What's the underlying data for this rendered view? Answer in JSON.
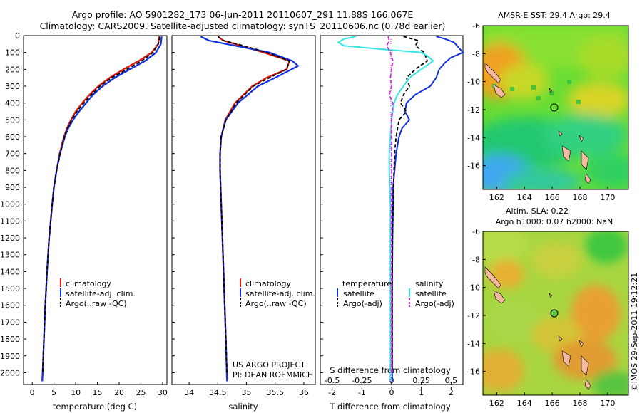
{
  "header": {
    "line1": "Argo profile: AO 5901282_173 06-Jun-2011 20110607_291 11.88S 166.067E",
    "line2": "Climatology: CARS2009. Satellite-adjusted climatology: synTS_20110606.nc (0.78d earlier)"
  },
  "side_label": "©IMOS 29-Sep-2011 19:12:21",
  "colors": {
    "climatology": "#e0140a",
    "satellite": "#1030e0",
    "argo": "#000000",
    "cyan": "#33e6e6",
    "magenta": "#e020e0"
  },
  "chart_data": [
    {
      "type": "line",
      "xlabel": "temperature (deg C)",
      "ylabel": "",
      "xlim": [
        -2,
        31
      ],
      "ylim": [
        2070,
        0
      ],
      "xticks": [
        "0",
        "5",
        "10",
        "15",
        "20",
        "25",
        "30"
      ],
      "yticks": [
        "0",
        "100",
        "200",
        "300",
        "400",
        "500",
        "600",
        "700",
        "800",
        "900",
        "1000",
        "1100",
        "1200",
        "1300",
        "1400",
        "1500",
        "1600",
        "1700",
        "1800",
        "1900",
        "2000"
      ],
      "legend": [
        "climatology",
        "satellite-adj. clim.",
        "Argo(..raw -QC)"
      ],
      "series": [
        {
          "name": "climatology",
          "depth": [
            5,
            50,
            100,
            150,
            200,
            250,
            300,
            350,
            400,
            450,
            500,
            550,
            600,
            700,
            800,
            900,
            1000,
            1200,
            1400,
            1600,
            1800,
            2000,
            2050
          ],
          "values": [
            29.2,
            29.0,
            27.5,
            24.5,
            21.0,
            17.8,
            15.2,
            13.2,
            11.5,
            10.0,
            8.9,
            8.0,
            7.3,
            6.3,
            5.6,
            5.0,
            4.6,
            3.9,
            3.4,
            3.0,
            2.7,
            2.4,
            2.3
          ]
        },
        {
          "name": "satellite-adj. clim.",
          "depth": [
            5,
            50,
            100,
            150,
            200,
            250,
            300,
            350,
            400,
            450,
            500,
            550,
            600,
            700,
            800,
            900,
            1000,
            1200,
            1400,
            1600,
            1800,
            2000,
            2050
          ],
          "values": [
            29.8,
            29.6,
            28.5,
            26.0,
            22.5,
            19.0,
            16.2,
            14.0,
            12.4,
            10.8,
            9.4,
            8.3,
            7.5,
            6.4,
            5.6,
            5.0,
            4.6,
            3.9,
            3.4,
            3.0,
            2.7,
            2.4,
            2.3
          ]
        },
        {
          "name": "Argo(..raw -QC)",
          "depth": [
            5,
            50,
            100,
            150,
            200,
            250,
            300,
            350,
            400,
            450,
            500,
            550,
            600,
            700,
            800,
            900,
            1000,
            1200,
            1400,
            1600,
            1800,
            2000
          ],
          "values": [
            29.4,
            29.0,
            27.8,
            25.2,
            21.8,
            18.3,
            15.6,
            13.6,
            11.9,
            10.3,
            9.1,
            8.1,
            7.4,
            6.4,
            5.6,
            5.0,
            4.6,
            3.9,
            3.4,
            3.0,
            2.7,
            2.4
          ]
        }
      ]
    },
    {
      "type": "line",
      "xlabel": "salinity",
      "ylabel": "",
      "xlim": [
        33.7,
        36.2
      ],
      "ylim": [
        2070,
        0
      ],
      "xticks": [
        "34",
        "34.5",
        "35",
        "35.5",
        "36"
      ],
      "legend": [
        "climatology",
        "satellite-adj. clim.",
        "Argo(..raw -QC)"
      ],
      "series": [
        {
          "name": "climatology",
          "depth": [
            5,
            30,
            60,
            100,
            150,
            200,
            250,
            300,
            400,
            500,
            600,
            700,
            800,
            1000,
            1200,
            1500,
            1800,
            2050
          ],
          "values": [
            34.5,
            34.6,
            34.9,
            35.3,
            35.75,
            35.7,
            35.35,
            35.1,
            34.8,
            34.63,
            34.56,
            34.54,
            34.54,
            34.56,
            34.58,
            34.61,
            34.64,
            34.66
          ]
        },
        {
          "name": "satellite-adj. clim.",
          "depth": [
            5,
            30,
            60,
            100,
            150,
            180,
            250,
            300,
            400,
            500,
            600,
            700,
            800,
            1000,
            1200,
            1500,
            1800,
            2050
          ],
          "values": [
            34.2,
            34.35,
            34.8,
            35.4,
            35.8,
            35.9,
            35.5,
            35.2,
            34.85,
            34.64,
            34.56,
            34.54,
            34.54,
            34.56,
            34.58,
            34.61,
            34.64,
            34.66
          ]
        },
        {
          "name": "Argo(..raw -QC)",
          "depth": [
            5,
            30,
            60,
            100,
            150,
            200,
            250,
            300,
            400,
            500,
            600,
            700,
            800,
            1000,
            1200,
            1500,
            1800,
            2000
          ],
          "values": [
            34.5,
            34.6,
            34.95,
            35.35,
            35.75,
            35.7,
            35.4,
            35.12,
            34.82,
            34.64,
            34.56,
            34.54,
            34.54,
            34.56,
            34.58,
            34.61,
            34.64,
            34.66
          ]
        }
      ]
    },
    {
      "type": "line",
      "xlabel_top": "S difference from climatology",
      "xlabel": "T difference from climatology",
      "xlim": [
        -2.4,
        2.4
      ],
      "ylim": [
        2070,
        0
      ],
      "xticks": [
        "-2",
        "-1",
        "0",
        "1",
        "2"
      ],
      "xticks_top": [
        "-0.5",
        "-0.25",
        "0",
        "0.25",
        "0.5"
      ],
      "legend_temperature": {
        "title": "temperature",
        "items": [
          "satellite",
          "Argo(-adj)"
        ]
      },
      "legend_salinity": {
        "title": "salinity",
        "items": [
          "satellite",
          "Argo(-adj)"
        ]
      },
      "series": [
        {
          "name": "temperature satellite",
          "depth": [
            5,
            20,
            40,
            60,
            80,
            100,
            130,
            160,
            200,
            250,
            300,
            350,
            400,
            450,
            500,
            550,
            600,
            700,
            800,
            900,
            1000,
            1200,
            1500,
            2050
          ],
          "values": [
            1.5,
            1.8,
            2.1,
            2.2,
            2.3,
            2.4,
            2.0,
            1.8,
            1.6,
            1.5,
            1.3,
            0.8,
            0.5,
            0.45,
            0.6,
            0.35,
            0.25,
            0.15,
            0.1,
            0.05,
            0.05,
            0.03,
            0.02,
            0.02
          ]
        },
        {
          "name": "temperature Argo(-adj)",
          "depth": [
            5,
            30,
            60,
            100,
            150,
            200,
            250,
            300,
            350,
            400,
            450,
            500,
            600,
            700,
            800,
            1000,
            1200,
            1500,
            2000
          ],
          "values": [
            0.4,
            0.9,
            0.8,
            1.1,
            1.2,
            0.8,
            0.5,
            0.6,
            0.4,
            0.3,
            0.5,
            0.25,
            0.15,
            0.1,
            0.08,
            0.05,
            0.03,
            0.02,
            0.02
          ]
        },
        {
          "name": "salinity satellite",
          "depth": [
            5,
            20,
            40,
            60,
            80,
            100,
            120,
            150,
            200,
            250,
            300,
            350,
            400,
            500,
            600,
            700,
            800,
            1000,
            1200,
            1500,
            2050
          ],
          "values": [
            -0.3,
            -0.4,
            -0.45,
            -0.4,
            -0.1,
            0.25,
            0.3,
            0.35,
            0.25,
            0.15,
            0.1,
            0.05,
            0.02,
            0.0,
            -0.01,
            -0.02,
            -0.02,
            -0.01,
            -0.01,
            -0.01,
            -0.01
          ]
        },
        {
          "name": "salinity Argo(-adj)",
          "depth": [
            5,
            30,
            60,
            100,
            150,
            200,
            250,
            300,
            350,
            400,
            500,
            600,
            800,
            1000,
            1500,
            2000
          ],
          "values": [
            -0.03,
            -0.02,
            -0.04,
            -0.01,
            0.01,
            0.0,
            -0.01,
            0.0,
            -0.02,
            0.01,
            0.0,
            0.0,
            0.0,
            0.0,
            0.0,
            0.0
          ]
        }
      ],
      "annotations": [
        "US ARGO PROJECT",
        "PI: DEAN ROEMMICH"
      ]
    },
    {
      "type": "heatmap",
      "title": "AMSR-E SST: 29.4  Argo: 29.4",
      "xlim": [
        161,
        171.5
      ],
      "ylim": [
        -17.7,
        -6
      ],
      "xticks": [
        "162",
        "164",
        "166",
        "168",
        "170"
      ],
      "yticks": [
        "-6",
        "-8",
        "-10",
        "-12",
        "-14",
        "-16"
      ],
      "marker": {
        "lon": 166.067,
        "lat": -11.88
      }
    },
    {
      "type": "heatmap",
      "title_line1": "Altim. SLA: 0.22",
      "title_line2": "Argo h1000: 0.07 h2000: NaN",
      "xlim": [
        161,
        171.5
      ],
      "ylim": [
        -17.7,
        -6
      ],
      "xticks": [
        "162",
        "164",
        "166",
        "168",
        "170"
      ],
      "yticks": [
        "-6",
        "-8",
        "-10",
        "-12",
        "-14",
        "-16"
      ],
      "marker": {
        "lon": 166.067,
        "lat": -11.88
      }
    }
  ]
}
